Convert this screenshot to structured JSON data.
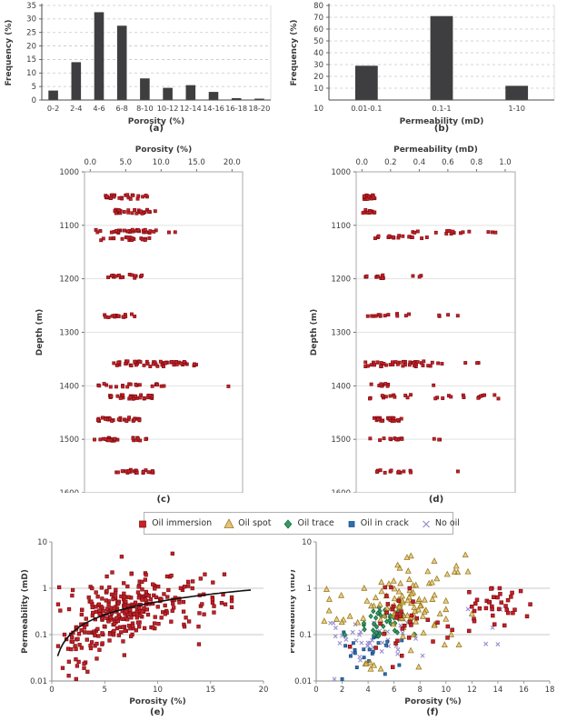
{
  "legend": {
    "items": [
      {
        "label": "Oil immersion",
        "marker": "square",
        "color": "#c92127",
        "edge": "#7c1015",
        "size": 7
      },
      {
        "label": "Oil spot",
        "marker": "triangle",
        "color": "#ddb559",
        "edge": "#9a7b1c",
        "size": 8
      },
      {
        "label": "Oil trace",
        "marker": "diamond",
        "color": "#2f9e62",
        "edge": "#185e38",
        "size": 7
      },
      {
        "label": "Oil in crack",
        "marker": "square",
        "color": "#2e6fb0",
        "edge": "#184a7c",
        "size": 6
      },
      {
        "label": "No oil",
        "marker": "x",
        "color": "#9188cb",
        "edge": "#9188cb",
        "size": 7
      }
    ]
  },
  "chart_data": [
    {
      "id": "a",
      "type": "bar",
      "caption": "(a)",
      "title": "",
      "xlabel": "Porosity (%)",
      "ylabel": "Frequency (%)",
      "categories": [
        "0-2",
        "2-4",
        "4-6",
        "6-8",
        "8-10",
        "10-12",
        "12-14",
        "14-16",
        "16-18",
        "18-20"
      ],
      "values": [
        3.5,
        14,
        32.5,
        27.5,
        8,
        4.5,
        5.5,
        3,
        0.7,
        0.5
      ],
      "ylim": [
        0,
        35
      ],
      "yticks": [
        0,
        5,
        10,
        15,
        20,
        25,
        30,
        35
      ],
      "grid": "dashed",
      "bar_color": "#3e3e40",
      "bar_frac": 0.42
    },
    {
      "id": "b",
      "type": "bar",
      "caption": "(b)",
      "title": "",
      "xlabel": "Permeability (mD)",
      "ylabel": "Frequency (%)",
      "categories": [
        "0.01-0.1",
        "0.1-1",
        "1-10"
      ],
      "values": [
        29,
        71,
        12
      ],
      "ylim": [
        0,
        80
      ],
      "yticks": [
        10,
        20,
        30,
        40,
        50,
        60,
        70,
        80
      ],
      "corner_label": "10",
      "grid": "dashed",
      "bar_color": "#3e3e40",
      "bar_frac": 0.3
    },
    {
      "id": "c",
      "type": "depth",
      "caption": "(c)",
      "xlabel": "Porosity (%)",
      "ylabel": "Depth (m)",
      "xlim": [
        -0.8,
        21.5
      ],
      "xticks": [
        {
          "v": 0,
          "label": "0.0"
        },
        {
          "v": 5,
          "label": "5.0"
        },
        {
          "v": 10,
          "label": "10.0"
        },
        {
          "v": 15,
          "label": "15.0"
        },
        {
          "v": 20,
          "label": "20.0"
        }
      ],
      "ylim": [
        1000,
        1600
      ],
      "yticks": [
        1000,
        1100,
        1200,
        1300,
        1400,
        1500,
        1600
      ],
      "marker": {
        "shape": "square",
        "color": "#c92127",
        "edge": "#811016",
        "size": 3.2
      },
      "clusters": [
        [
          1047,
          4,
          26,
          2.0,
          8.3
        ],
        [
          1074,
          4,
          28,
          3.0,
          9.5
        ],
        [
          1111,
          3,
          34,
          0.5,
          12.3
        ],
        [
          1125,
          3,
          22,
          1.5,
          8.5
        ],
        [
          1196,
          4,
          18,
          1.5,
          7.8
        ],
        [
          1269,
          3,
          16,
          1.8,
          6.5
        ],
        [
          1359,
          5,
          40,
          2.3,
          15.3
        ],
        [
          1358,
          3,
          14,
          10.3,
          13.8
        ],
        [
          1399,
          3,
          20,
          1.0,
          12.5
        ],
        [
          1421,
          4,
          24,
          2.5,
          9.3
        ],
        [
          1421,
          3,
          10,
          5.5,
          8.7
        ],
        [
          1463,
          4,
          30,
          1.0,
          7.3
        ],
        [
          1500,
          3,
          26,
          0.5,
          8.6
        ],
        [
          1560,
          3,
          24,
          3.3,
          9.0
        ]
      ],
      "extra": [
        [
          19.5,
          1401
        ]
      ]
    },
    {
      "id": "d",
      "type": "depth",
      "caption": "(d)",
      "xlabel": "Permeability (mD)",
      "ylabel": "Depth (m)",
      "xlim": [
        -0.04,
        1.07
      ],
      "xticks": [
        {
          "v": 0,
          "label": "0.0"
        },
        {
          "v": 0.2,
          "label": "0.2"
        },
        {
          "v": 0.4,
          "label": "0.4"
        },
        {
          "v": 0.6,
          "label": "0.6"
        },
        {
          "v": 0.8,
          "label": "0.8"
        },
        {
          "v": 1.0,
          "label": "1.0"
        }
      ],
      "ylim": [
        1000,
        1600
      ],
      "yticks": [
        1000,
        1100,
        1200,
        1300,
        1400,
        1500,
        1600
      ],
      "marker": {
        "shape": "square",
        "color": "#c92127",
        "edge": "#811016",
        "size": 3.2
      },
      "clusters": [
        [
          1047,
          4,
          20,
          0.005,
          0.1
        ],
        [
          1074,
          3,
          14,
          0.005,
          0.09
        ],
        [
          1113,
          3,
          13,
          0.28,
          0.75
        ],
        [
          1113,
          1,
          3,
          0.88,
          0.97
        ],
        [
          1122,
          3,
          17,
          0.08,
          0.47
        ],
        [
          1196,
          3,
          11,
          0.02,
          0.15
        ],
        [
          1196,
          2,
          3,
          0.28,
          0.46
        ],
        [
          1268,
          3,
          13,
          0.03,
          0.33
        ],
        [
          1268,
          2,
          4,
          0.52,
          0.7
        ],
        [
          1359,
          5,
          38,
          0.02,
          0.5
        ],
        [
          1357,
          3,
          5,
          0.52,
          0.82
        ],
        [
          1399,
          3,
          9,
          0.01,
          0.28
        ],
        [
          1420,
          4,
          26,
          0.03,
          1.0
        ],
        [
          1463,
          3,
          24,
          0.07,
          0.28
        ],
        [
          1500,
          2,
          12,
          0.05,
          0.3
        ],
        [
          1500,
          1,
          3,
          0.49,
          0.56
        ],
        [
          1560,
          3,
          13,
          0.1,
          0.35
        ]
      ],
      "extra": [
        [
          0.5,
          1399
        ],
        [
          0.67,
          1560
        ]
      ]
    },
    {
      "id": "e",
      "type": "log",
      "caption": "(e)",
      "xlabel": "Porosity (%)",
      "ylabel": "Permeability (mD)",
      "xlim": [
        0,
        20
      ],
      "xticks": [
        0,
        5,
        10,
        15,
        20
      ],
      "ylim": [
        0.01,
        10
      ],
      "yticks": [
        {
          "v": 10,
          "label": "10"
        },
        {
          "v": 1,
          "label": "1"
        },
        {
          "v": 0.1,
          "label": "0.1"
        },
        {
          "v": 0.01,
          "label": "0.01"
        }
      ],
      "ygrid": [
        1,
        0.1
      ],
      "trend": {
        "a": 0.06,
        "b": 0.93,
        "x0": 0.55,
        "x1": 19,
        "color": "#111111",
        "width": 1.6
      },
      "series": [
        {
          "name": "core-samples",
          "marker": "square",
          "color": "#c92127",
          "edge": "#7c1015",
          "size": 3.6,
          "opacity": 1,
          "gen": [
            {
              "n": 240,
              "xmu": 6.2,
              "xsd": 2.0,
              "xmin": 0.6,
              "xmax": 11.5,
              "trend": true,
              "lyoff": 0,
              "lysd": 0.34,
              "lymin": -1.72,
              "lymax": 0.75
            },
            {
              "n": 60,
              "xmu": 12.8,
              "xsd": 2.0,
              "xmin": 9.0,
              "xmax": 17.0,
              "trend": true,
              "lyoff": -0.12,
              "lysd": 0.28,
              "lymin": -1.3,
              "lymax": 0.3
            },
            {
              "n": 28,
              "xmu": 2.6,
              "xsd": 1.1,
              "xmin": 0.5,
              "xmax": 4.6,
              "lymu": -1.12,
              "lysd": 0.3,
              "lymin": -1.8,
              "lymax": -0.5
            }
          ],
          "extra": [
            [
              0.7,
              1.05
            ],
            [
              0.6,
              0.45
            ],
            [
              0.8,
              0.33
            ],
            [
              1.2,
              0.1
            ],
            [
              1.6,
              0.013
            ],
            [
              2.3,
              0.011
            ],
            [
              6.6,
              4.8
            ],
            [
              11.4,
              5.6
            ],
            [
              10.9,
              1.8
            ],
            [
              8.9,
              1.95
            ],
            [
              13.9,
              0.062
            ],
            [
              16.4,
              0.45
            ],
            [
              3.8,
              1.0
            ]
          ]
        }
      ]
    },
    {
      "id": "f",
      "type": "log",
      "caption": "(f)",
      "xlabel": "Porosity (%)",
      "ylabel": "Permeability (mD)",
      "xlim": [
        0,
        18
      ],
      "xticks": [
        0,
        2,
        4,
        6,
        8,
        10,
        12,
        14,
        16,
        18
      ],
      "ylim": [
        0.01,
        10
      ],
      "yticks": [
        {
          "v": 10,
          "label": "10"
        },
        {
          "v": 1,
          "label": "1"
        },
        {
          "v": 0.1,
          "label": "0.1"
        },
        {
          "v": 0.01,
          "label": "0.01"
        }
      ],
      "ygrid": [
        1,
        0.1
      ],
      "series": [
        {
          "name": "oil-immersion",
          "label": "Oil immersion",
          "marker": "square",
          "color": "#c92127",
          "edge": "#7c1015",
          "size": 3.8,
          "opacity": 1,
          "gen": [
            {
              "n": 24,
              "xmu": 6.3,
              "xsd": 0.9,
              "xmin": 4.4,
              "xmax": 8.6,
              "lymu": -0.62,
              "lysd": 0.35,
              "lymin": -1.5,
              "lymax": 0.02
            },
            {
              "n": 34,
              "xmu": 14.0,
              "xsd": 1.3,
              "xmin": 11.6,
              "xmax": 16.7,
              "lymu": -0.38,
              "lysd": 0.2,
              "lymin": -0.95,
              "lymax": 0.0
            },
            {
              "n": 7,
              "xmu": 10.2,
              "xsd": 1.0,
              "xmin": 8.6,
              "xmax": 11.9,
              "lymu": -0.85,
              "lysd": 0.25,
              "lymin": -1.25,
              "lymax": -0.2
            }
          ],
          "extra": [
            [
              16.5,
              0.45
            ],
            [
              15.1,
              0.8
            ],
            [
              2.6,
              0.055
            ],
            [
              4.6,
              0.052
            ],
            [
              6.6,
              0.035
            ],
            [
              7.2,
              1.0
            ],
            [
              5.9,
              0.02
            ]
          ]
        },
        {
          "name": "oil-spot",
          "label": "Oil spot",
          "marker": "triangle",
          "color": "#ddb559",
          "edge": "#9a7b1c",
          "size": 4.6,
          "opacity": 0.65,
          "gen": [
            {
              "n": 80,
              "xmu": 6.6,
              "xsd": 1.5,
              "xmin": 3.2,
              "xmax": 10.0,
              "lymu": -0.42,
              "lysd": 0.38,
              "lymin": -1.35,
              "lymax": 0.55
            },
            {
              "n": 8,
              "xmu": 1.2,
              "xsd": 0.7,
              "xmin": 0.4,
              "xmax": 2.6,
              "lymu": -0.65,
              "lysd": 0.35,
              "lymin": -1.2,
              "lymax": 0.0
            },
            {
              "n": 7,
              "xmu": 9.6,
              "xsd": 1.3,
              "xmin": 7.3,
              "xmax": 11.7,
              "lymu": 0.38,
              "lysd": 0.18,
              "lymin": 0.1,
              "lymax": 0.72
            },
            {
              "n": 6,
              "xmu": 4.4,
              "xsd": 0.6,
              "xmin": 3.4,
              "xmax": 5.4,
              "lymu": -1.6,
              "lysd": 0.12,
              "lymin": -1.78,
              "lymax": -1.35
            }
          ],
          "extra": [
            [
              7.0,
              4.6
            ],
            [
              11.5,
              5.2
            ],
            [
              10.8,
              3.0
            ],
            [
              8.6,
              2.3
            ],
            [
              0.8,
              0.95
            ],
            [
              9.3,
              1.6
            ],
            [
              3.7,
              1.0
            ],
            [
              12.0,
              0.28
            ],
            [
              10.4,
              0.1
            ],
            [
              11.0,
              0.06
            ],
            [
              9.9,
              0.06
            ],
            [
              7.9,
              0.02
            ]
          ]
        },
        {
          "name": "oil-trace",
          "label": "Oil trace",
          "marker": "diamond",
          "color": "#2f9e62",
          "edge": "#185e38",
          "size": 4.0,
          "opacity": 1,
          "gen": [
            {
              "n": 32,
              "xmu": 5.0,
              "xsd": 1.0,
              "xmin": 3.1,
              "xmax": 7.2,
              "lymu": -0.75,
              "lysd": 0.17,
              "lymin": -1.1,
              "lymax": -0.42
            }
          ],
          "extra": [
            [
              2.2,
              0.1
            ],
            [
              7.6,
              0.1
            ],
            [
              4.4,
              0.32
            ]
          ]
        },
        {
          "name": "oil-in-crack",
          "label": "Oil in crack",
          "marker": "square",
          "color": "#2e6fb0",
          "edge": "#184a7c",
          "size": 3.2,
          "opacity": 1,
          "gen": [
            {
              "n": 19,
              "xmu": 3.9,
              "xsd": 1.2,
              "xmin": 2.1,
              "xmax": 6.8,
              "lymu": -1.3,
              "lysd": 0.22,
              "lymin": -1.85,
              "lymax": -0.95
            }
          ],
          "extra": [
            [
              2.0,
              0.011
            ],
            [
              6.4,
              0.022
            ],
            [
              6.6,
              0.075
            ],
            [
              3.0,
              0.04
            ]
          ]
        },
        {
          "name": "no-oil",
          "label": "No oil",
          "marker": "x",
          "color": "#9188cb",
          "edge": "#9188cb",
          "size": 4.2,
          "opacity": 0.95,
          "gen": [
            {
              "n": 36,
              "xmu": 4.0,
              "xsd": 1.6,
              "xmin": 1.1,
              "xmax": 8.3,
              "lymu": -1.1,
              "lysd": 0.22,
              "lymin": -1.6,
              "lymax": -0.75
            },
            {
              "n": 4,
              "xmu": 12.8,
              "xsd": 1.0,
              "xmin": 11.4,
              "xmax": 14.2,
              "lymu": -0.75,
              "lysd": 0.3,
              "lymin": -1.2,
              "lymax": -0.45
            }
          ],
          "extra": [
            [
              1.4,
              0.011
            ],
            [
              14.0,
              0.062
            ],
            [
              8.2,
              0.035
            ],
            [
              3.4,
              0.028
            ],
            [
              2.0,
              0.095
            ]
          ]
        }
      ]
    }
  ]
}
